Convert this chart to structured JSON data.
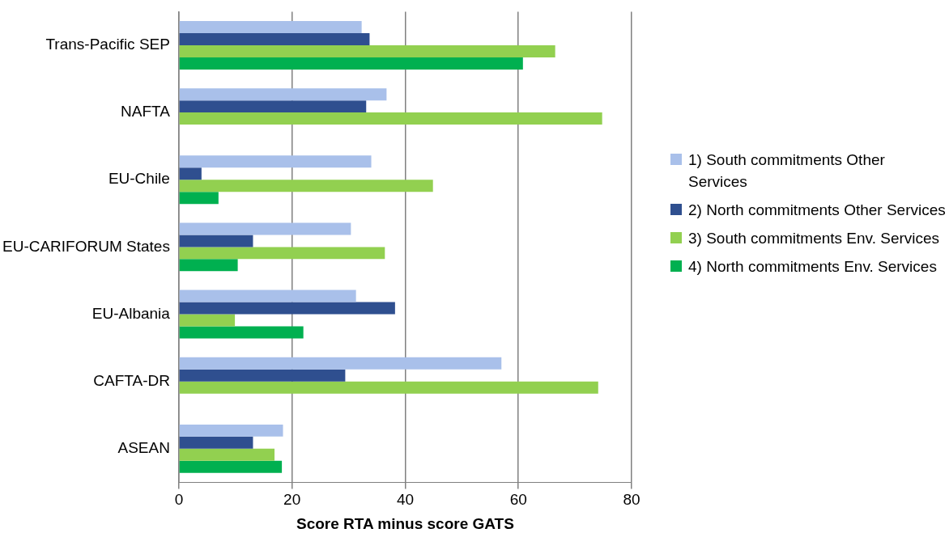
{
  "chart_data": {
    "type": "bar",
    "orientation": "horizontal",
    "xlabel": "Score RTA minus score GATS",
    "categories": [
      "Trans-Pacific SEP",
      "NAFTA",
      "EU-Chile",
      "EU-CARIFORUM States",
      "EU-Albania",
      "CAFTA-DR",
      "ASEAN"
    ],
    "series": [
      {
        "name": "1) South commitments Other Services",
        "color": "#a9c0ea",
        "values": [
          32.3,
          36.7,
          34.0,
          30.4,
          31.3,
          57.0,
          18.4
        ]
      },
      {
        "name": "2) North commitments Other Services",
        "color": "#2f4f8f",
        "values": [
          33.7,
          33.1,
          4.0,
          13.1,
          38.2,
          29.4,
          13.1
        ]
      },
      {
        "name": "3) South commitments Env. Services",
        "color": "#92d050",
        "values": [
          66.5,
          74.8,
          44.9,
          36.4,
          9.9,
          74.1,
          16.9
        ]
      },
      {
        "name": "4) North commitments Env. Services",
        "color": "#00b050",
        "values": [
          60.8,
          0,
          7.0,
          10.4,
          22.0,
          0,
          18.2
        ]
      }
    ],
    "xlim": [
      0,
      80
    ],
    "xticks": [
      0,
      20,
      40,
      60,
      80
    ],
    "grid": "x",
    "legend": "right"
  }
}
